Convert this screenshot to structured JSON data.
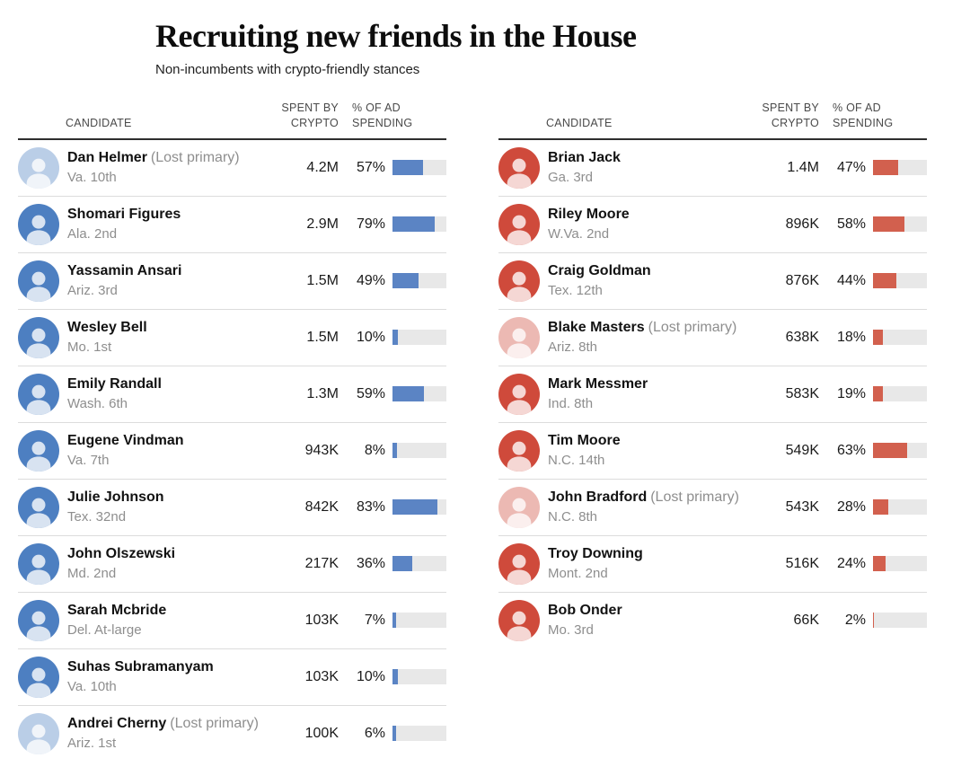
{
  "header": {
    "title": "Recruiting new friends in the House",
    "subtitle": "Non-incumbents with crypto-friendly stances"
  },
  "columns": {
    "candidate": "CANDIDATE",
    "spent_lines": [
      "SPENT BY",
      "CRYPTO"
    ],
    "pct_lines": [
      "% OF AD",
      "SPENDING"
    ]
  },
  "colors": {
    "dem_bar": "#5b84c4",
    "rep_bar": "#d2604e",
    "dem_avatar": "#4d7fc1",
    "rep_avatar": "#cf4a3b",
    "bar_track": "#e8e8e8",
    "row_divider": "#dcdcdc",
    "header_rule": "#2e2e2e"
  },
  "chart_data": [
    {
      "type": "bar",
      "party": "Democrats",
      "bar_color": "#5b84c4",
      "avatar_color": "#4d7fc1",
      "value_unit": "% of ad spending",
      "xlim": [
        0,
        100
      ],
      "rows": [
        {
          "name": "Dan Helmer",
          "note": "(Lost primary)",
          "district": "Va. 10th",
          "spent": "4.2M",
          "pct": 57,
          "pct_label": "57%",
          "lost_primary": true
        },
        {
          "name": "Shomari Figures",
          "note": "",
          "district": "Ala. 2nd",
          "spent": "2.9M",
          "pct": 79,
          "pct_label": "79%",
          "lost_primary": false
        },
        {
          "name": "Yassamin Ansari",
          "note": "",
          "district": "Ariz. 3rd",
          "spent": "1.5M",
          "pct": 49,
          "pct_label": "49%",
          "lost_primary": false
        },
        {
          "name": "Wesley Bell",
          "note": "",
          "district": "Mo. 1st",
          "spent": "1.5M",
          "pct": 10,
          "pct_label": "10%",
          "lost_primary": false
        },
        {
          "name": "Emily Randall",
          "note": "",
          "district": "Wash. 6th",
          "spent": "1.3M",
          "pct": 59,
          "pct_label": "59%",
          "lost_primary": false
        },
        {
          "name": "Eugene Vindman",
          "note": "",
          "district": "Va. 7th",
          "spent": "943K",
          "pct": 8,
          "pct_label": "8%",
          "lost_primary": false
        },
        {
          "name": "Julie Johnson",
          "note": "",
          "district": "Tex. 32nd",
          "spent": "842K",
          "pct": 83,
          "pct_label": "83%",
          "lost_primary": false
        },
        {
          "name": "John Olszewski",
          "note": "",
          "district": "Md. 2nd",
          "spent": "217K",
          "pct": 36,
          "pct_label": "36%",
          "lost_primary": false
        },
        {
          "name": "Sarah Mcbride",
          "note": "",
          "district": "Del. At-large",
          "spent": "103K",
          "pct": 7,
          "pct_label": "7%",
          "lost_primary": false
        },
        {
          "name": "Suhas Subramanyam",
          "note": "",
          "district": "Va. 10th",
          "spent": "103K",
          "pct": 10,
          "pct_label": "10%",
          "lost_primary": false
        },
        {
          "name": "Andrei Cherny",
          "note": "(Lost primary)",
          "district": "Ariz. 1st",
          "spent": "100K",
          "pct": 6,
          "pct_label": "6%",
          "lost_primary": true
        }
      ]
    },
    {
      "type": "bar",
      "party": "Republicans",
      "bar_color": "#d2604e",
      "avatar_color": "#cf4a3b",
      "value_unit": "% of ad spending",
      "xlim": [
        0,
        100
      ],
      "rows": [
        {
          "name": "Brian Jack",
          "note": "",
          "district": "Ga. 3rd",
          "spent": "1.4M",
          "pct": 47,
          "pct_label": "47%",
          "lost_primary": false
        },
        {
          "name": "Riley Moore",
          "note": "",
          "district": "W.Va. 2nd",
          "spent": "896K",
          "pct": 58,
          "pct_label": "58%",
          "lost_primary": false
        },
        {
          "name": "Craig Goldman",
          "note": "",
          "district": "Tex. 12th",
          "spent": "876K",
          "pct": 44,
          "pct_label": "44%",
          "lost_primary": false
        },
        {
          "name": "Blake Masters",
          "note": "(Lost primary)",
          "district": "Ariz. 8th",
          "spent": "638K",
          "pct": 18,
          "pct_label": "18%",
          "lost_primary": true
        },
        {
          "name": "Mark Messmer",
          "note": "",
          "district": "Ind. 8th",
          "spent": "583K",
          "pct": 19,
          "pct_label": "19%",
          "lost_primary": false
        },
        {
          "name": "Tim Moore",
          "note": "",
          "district": "N.C. 14th",
          "spent": "549K",
          "pct": 63,
          "pct_label": "63%",
          "lost_primary": false
        },
        {
          "name": "John Bradford",
          "note": "(Lost primary)",
          "district": "N.C. 8th",
          "spent": "543K",
          "pct": 28,
          "pct_label": "28%",
          "lost_primary": true
        },
        {
          "name": "Troy Downing",
          "note": "",
          "district": "Mont. 2nd",
          "spent": "516K",
          "pct": 24,
          "pct_label": "24%",
          "lost_primary": false
        },
        {
          "name": "Bob Onder",
          "note": "",
          "district": "Mo. 3rd",
          "spent": "66K",
          "pct": 2,
          "pct_label": "2%",
          "lost_primary": false
        }
      ]
    }
  ]
}
